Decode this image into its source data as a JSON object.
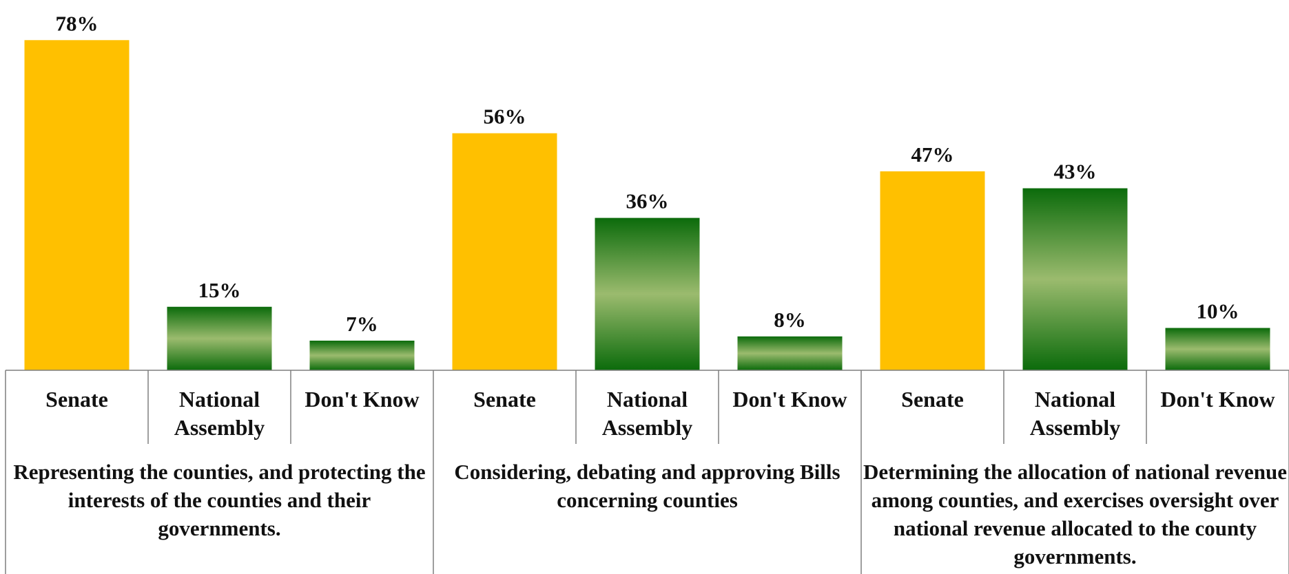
{
  "colors": {
    "senate": "#FFC000",
    "national_dark": "#0B6B0B",
    "national_light": "#9BBB6E",
    "axis": "#7F7F7F"
  },
  "chart_data": {
    "type": "bar",
    "ylim": [
      0,
      80
    ],
    "grid": false,
    "groups": [
      {
        "label": "Representing the counties, and protecting the interests of the counties and their governments.",
        "bars": [
          {
            "category": "Senate",
            "value": 78,
            "value_label": "78%"
          },
          {
            "category": "National Assembly",
            "value": 15,
            "value_label": "15%"
          },
          {
            "category": "Don't Know",
            "value": 7,
            "value_label": "7%"
          }
        ]
      },
      {
        "label": "Considering, debating and approving Bills concerning counties",
        "bars": [
          {
            "category": "Senate",
            "value": 56,
            "value_label": "56%"
          },
          {
            "category": "National Assembly",
            "value": 36,
            "value_label": "36%"
          },
          {
            "category": "Don't Know",
            "value": 8,
            "value_label": "8%"
          }
        ]
      },
      {
        "label": "Determining the allocation of national revenue among counties, and exercises oversight over national revenue allocated to the county governments.",
        "bars": [
          {
            "category": "Senate",
            "value": 47,
            "value_label": "47%"
          },
          {
            "category": "National Assembly",
            "value": 43,
            "value_label": "43%"
          },
          {
            "category": "Don't Know",
            "value": 10,
            "value_label": "10%"
          }
        ]
      }
    ]
  }
}
